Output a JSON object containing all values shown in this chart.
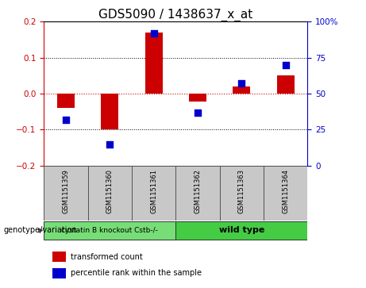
{
  "title": "GDS5090 / 1438637_x_at",
  "samples": [
    "GSM1151359",
    "GSM1151360",
    "GSM1151361",
    "GSM1151362",
    "GSM1151363",
    "GSM1151364"
  ],
  "transformed_count": [
    -0.04,
    -0.1,
    0.17,
    -0.022,
    0.02,
    0.05
  ],
  "percentile_rank": [
    32,
    15,
    92,
    37,
    57,
    70
  ],
  "groups": [
    {
      "label": "cystatin B knockout Cstb-/-",
      "samples": [
        0,
        1,
        2
      ],
      "color": "#77dd77"
    },
    {
      "label": "wild type",
      "samples": [
        3,
        4,
        5
      ],
      "color": "#44cc44"
    }
  ],
  "ylim_left": [
    -0.2,
    0.2
  ],
  "ylim_right": [
    0,
    100
  ],
  "bar_color": "#cc0000",
  "dot_color": "#0000cc",
  "bar_width": 0.4,
  "dot_size": 30,
  "zero_line_color": "#cc0000",
  "background_sample": "#c8c8c8",
  "genotype_label": "genotype/variation",
  "legend_bar_label": "transformed count",
  "legend_dot_label": "percentile rank within the sample",
  "title_fontsize": 11,
  "tick_fontsize": 7.5,
  "sample_fontsize": 6,
  "legend_fontsize": 7,
  "group_fontsize_1": 6.5,
  "group_fontsize_2": 8
}
